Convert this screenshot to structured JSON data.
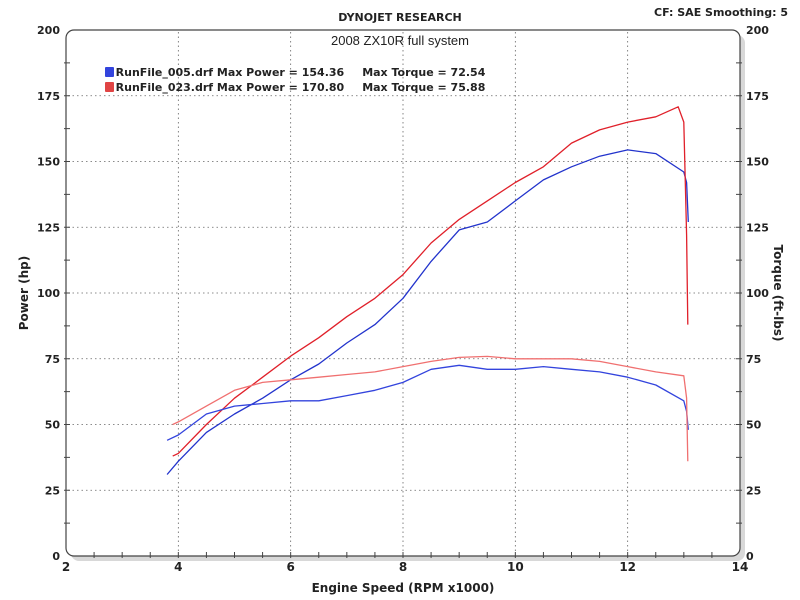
{
  "header": {
    "company": "DYNOJET RESEARCH",
    "settings": "CF: SAE  Smoothing: 5"
  },
  "chart_data": {
    "type": "line",
    "title": "2008 ZX10R full system",
    "xlabel": "Engine Speed (RPM x1000)",
    "ylabel": "Power (hp)",
    "y2label": "Torque (ft-lbs)",
    "xlim": [
      2,
      14
    ],
    "ylim": [
      0,
      200
    ],
    "y2lim": [
      0,
      200
    ],
    "xticks": [
      "2",
      "4",
      "6",
      "8",
      "10",
      "12",
      "14"
    ],
    "yticks": [
      "0",
      "25",
      "50",
      "75",
      "100",
      "125",
      "150",
      "175",
      "200"
    ],
    "grid": true,
    "legend_position": "top-left",
    "legend": [
      {
        "run": "RunFile_005.drf",
        "max_power_label": "Max Power = 154.36",
        "max_torque_label": "Max Torque = 72.54",
        "color": "#2233cc"
      },
      {
        "run": "RunFile_023.drf",
        "max_power_label": "Max Power = 170.80",
        "max_torque_label": "Max Torque = 75.88",
        "color": "#e0202a"
      }
    ],
    "series": [
      {
        "name": "RunFile_005.drf Power",
        "axis": "left",
        "color": "#2233cc",
        "x": [
          3.8,
          4,
          4.5,
          5,
          5.5,
          6,
          6.5,
          7,
          7.5,
          8,
          8.5,
          9,
          9.5,
          10,
          10.5,
          11,
          11.5,
          12,
          12.5,
          13,
          13.05,
          13.08
        ],
        "y": [
          31,
          36,
          47,
          54,
          60,
          67,
          73,
          81,
          88,
          98,
          112,
          124,
          127,
          135,
          143,
          148,
          152,
          154.4,
          153,
          146,
          142,
          127
        ]
      },
      {
        "name": "RunFile_023.drf Power",
        "axis": "left",
        "color": "#e0202a",
        "x": [
          3.9,
          4,
          4.5,
          5,
          5.5,
          6,
          6.5,
          7,
          7.5,
          8,
          8.5,
          9,
          9.5,
          10,
          10.5,
          11,
          11.5,
          12,
          12.5,
          12.9,
          13.0,
          13.05,
          13.07
        ],
        "y": [
          38,
          39,
          50,
          60,
          68,
          76,
          83,
          91,
          98,
          107,
          119,
          128,
          135,
          142,
          148,
          157,
          162,
          165,
          167,
          170.8,
          165,
          122,
          88
        ]
      },
      {
        "name": "RunFile_005.drf Torque",
        "axis": "right",
        "color": "#3344dd",
        "x": [
          3.8,
          4,
          4.5,
          5,
          5.5,
          6,
          6.5,
          7,
          7.5,
          8,
          8.5,
          9,
          9.5,
          10,
          10.5,
          11,
          11.5,
          12,
          12.5,
          13,
          13.05,
          13.08
        ],
        "y": [
          44,
          46,
          54,
          57,
          58,
          59,
          59,
          61,
          63,
          66,
          71,
          72.5,
          71,
          71,
          72,
          71,
          70,
          68,
          65,
          59,
          55,
          48
        ]
      },
      {
        "name": "RunFile_023.drf Torque",
        "axis": "right",
        "color": "#f07070",
        "x": [
          3.9,
          4,
          4.5,
          5,
          5.5,
          6,
          6.5,
          7,
          7.5,
          8,
          8.5,
          9,
          9.5,
          10,
          10.5,
          11,
          11.5,
          12,
          12.5,
          13,
          13.05,
          13.07
        ],
        "y": [
          50,
          51,
          57,
          63,
          66,
          67,
          68,
          69,
          70,
          72,
          74,
          75.5,
          75.9,
          75,
          75,
          75,
          74,
          72,
          70,
          68.5,
          60,
          36
        ]
      }
    ]
  }
}
